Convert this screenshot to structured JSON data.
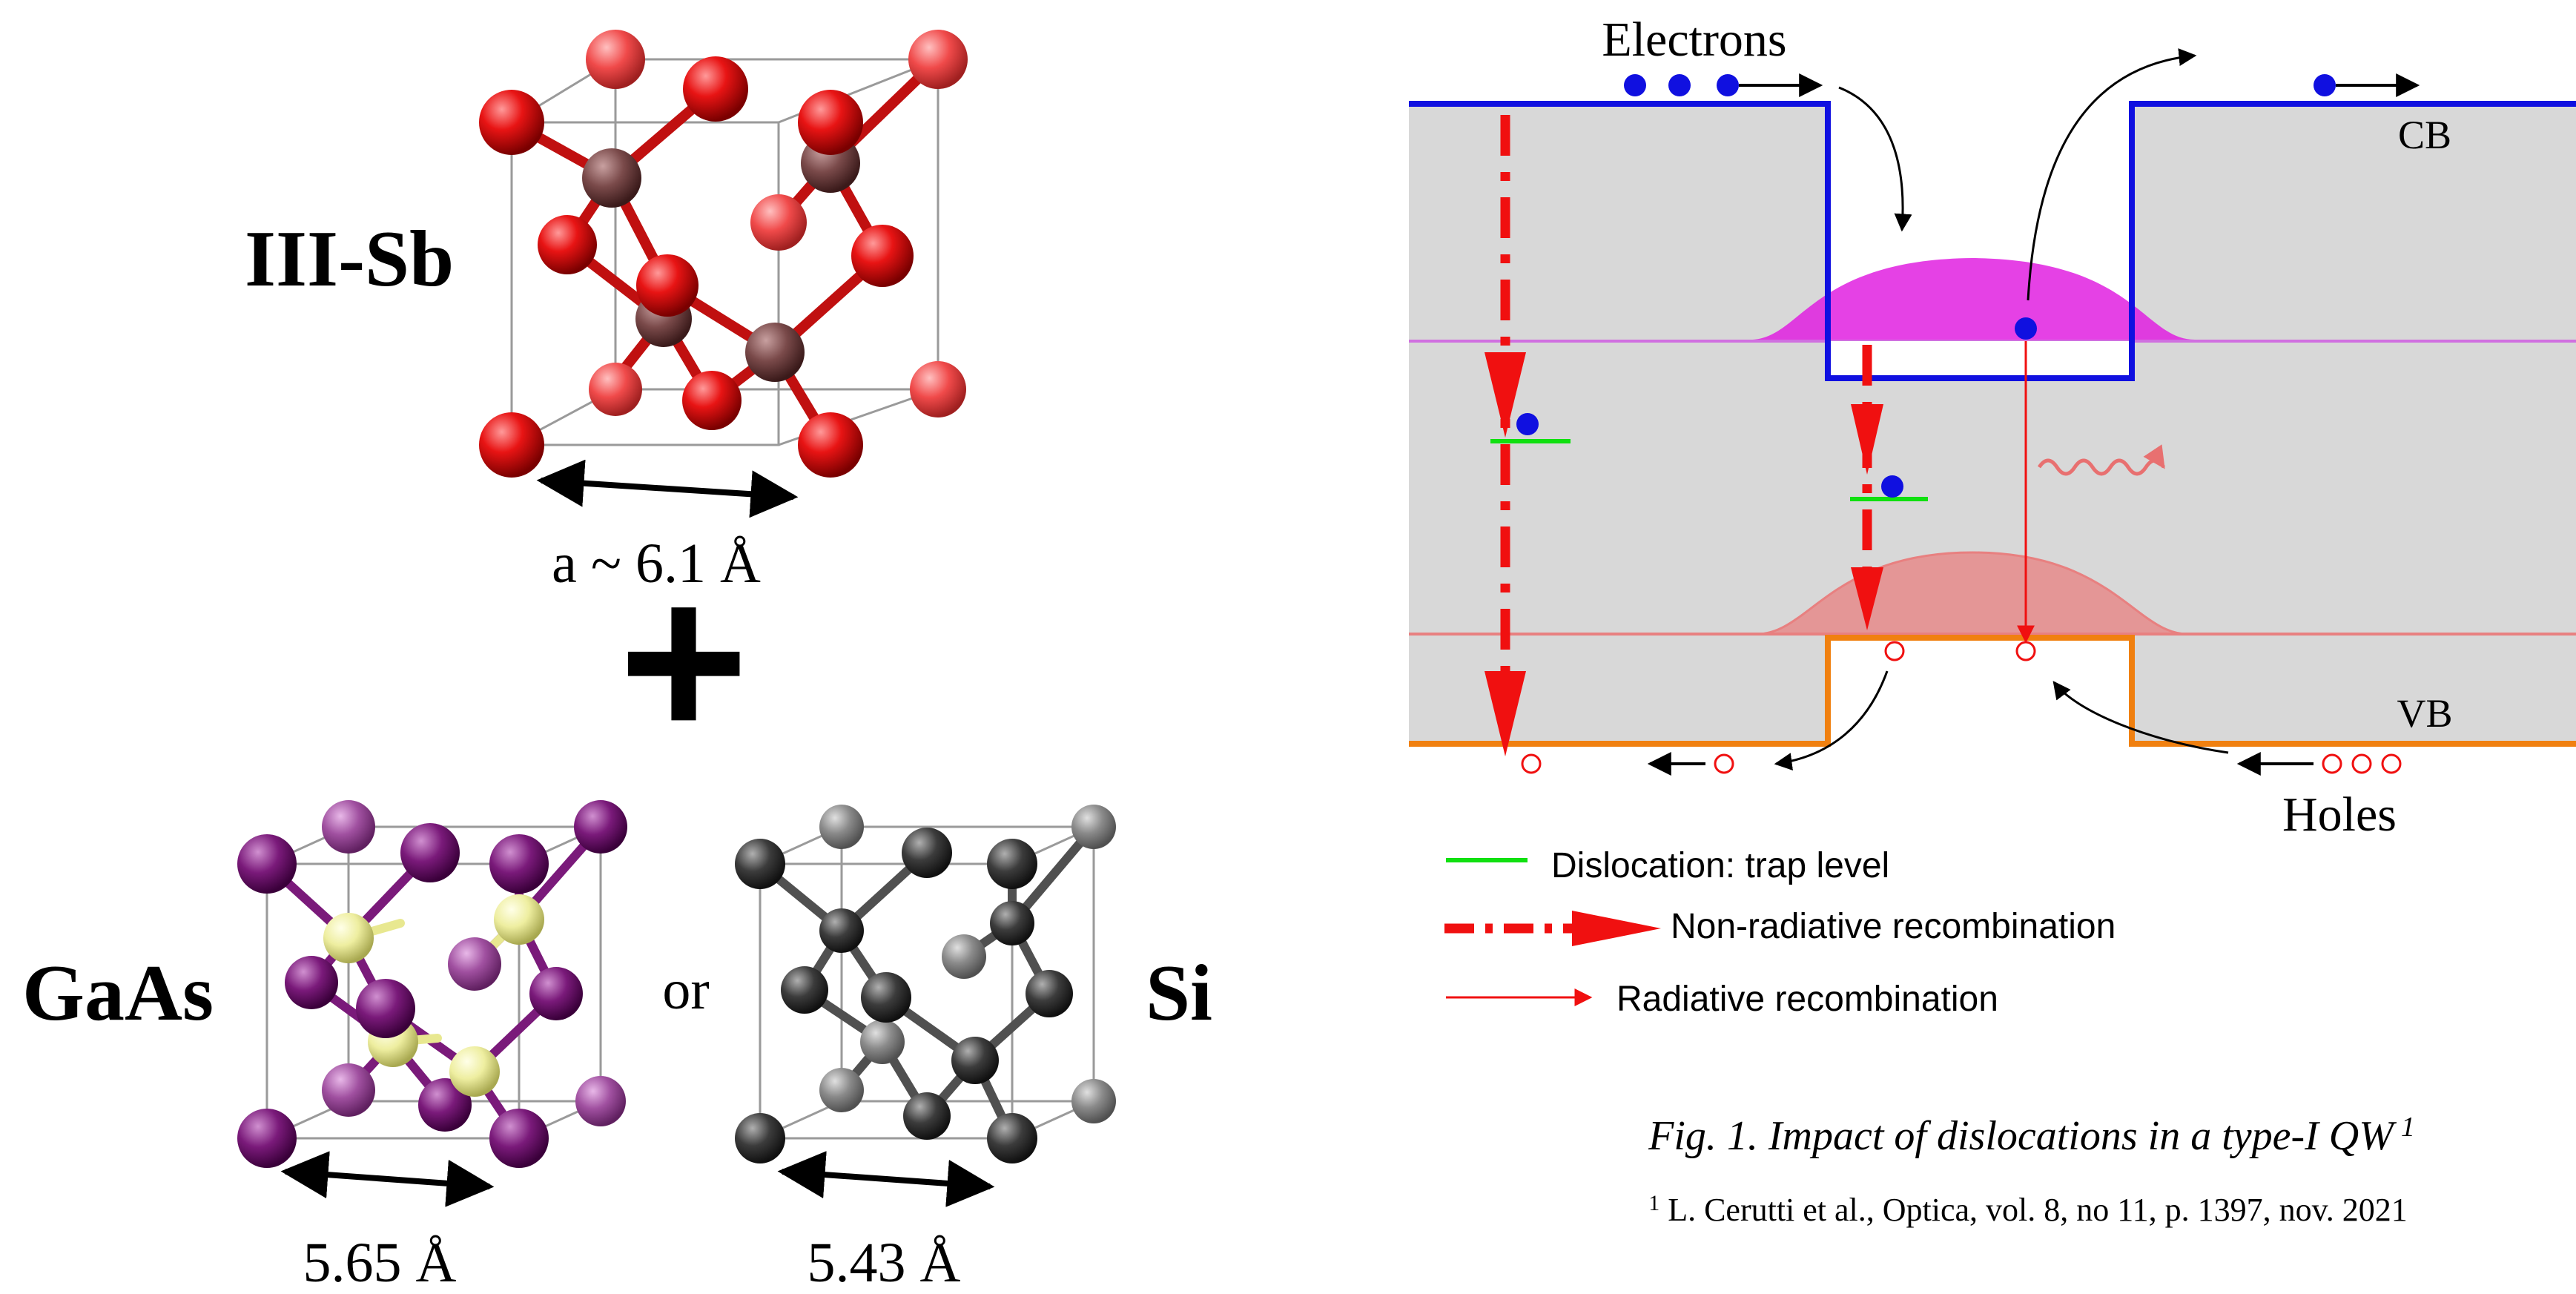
{
  "crystals": {
    "iii_sb": {
      "label": "III-Sb",
      "lattice": "a ~ 6.1 Å",
      "atom_color": "#e01010",
      "cation_color": "#7a4a4a"
    },
    "plus_sign": "+",
    "gaas": {
      "label": "GaAs",
      "lattice": "5.65 Å",
      "atom_color": "#7a1a7a",
      "cation_color": "#f0f0a0"
    },
    "or_text": "or",
    "si": {
      "label": "Si",
      "lattice": "5.43 Å",
      "atom_color": "#3a3a3a"
    }
  },
  "band_diagram": {
    "electrons_label": "Electrons",
    "holes_label": "Holes",
    "cb_label": "CB",
    "vb_label": "VB",
    "colors": {
      "conduction_band": "#1010e0",
      "valence_band": "#f08010",
      "background": "#d8d8d8",
      "electron_wavefunction": "#e020e0",
      "hole_wavefunction": "#e88080",
      "trap_level": "#10e010",
      "recombination_arrow": "#f01010"
    }
  },
  "legend": {
    "items": [
      {
        "label": "Dislocation: trap level"
      },
      {
        "label": "Non-radiative recombination"
      },
      {
        "label": "Radiative recombination"
      }
    ]
  },
  "caption": {
    "title": "Fig. 1. Impact of dislocations in a type-I QW",
    "title_sup": "1",
    "reference_sup": "1",
    "reference": " L. Cerutti et al., Optica, vol. 8, no 11, p. 1397, nov. 2021"
  }
}
